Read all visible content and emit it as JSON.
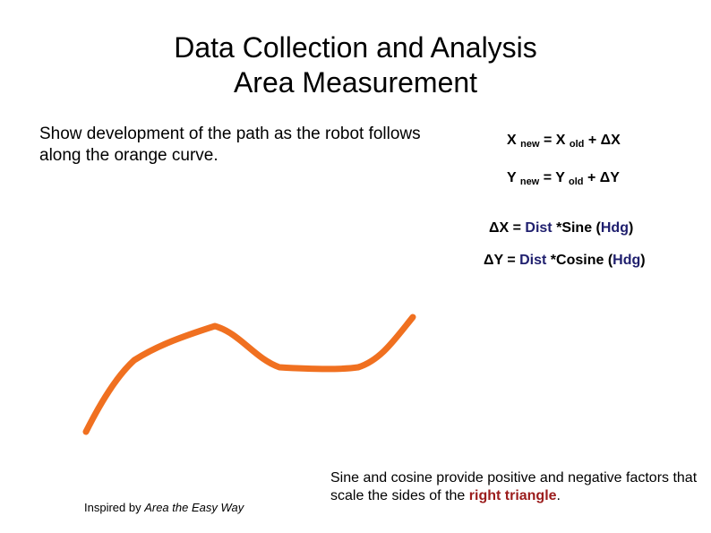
{
  "slide": {
    "title_line1": "Data Collection and Analysis",
    "title_line2": "Area Measurement",
    "intro": "Show development of the path as the robot follows along the orange curve."
  },
  "equations": {
    "x_update": {
      "lhs": "X",
      "lhs_sub": "new",
      "eq": " = X",
      "rhs_sub": "old",
      "plus": " +  ΔX"
    },
    "y_update": {
      "lhs": "Y",
      "lhs_sub": "new",
      "eq": " = Y",
      "rhs_sub": "old",
      "plus": " +  ΔY"
    },
    "dx": {
      "lhs": "ΔX = ",
      "dist": "Dist",
      "func": " *Sine (",
      "hdg": "Hdg",
      "close": ")"
    },
    "dy": {
      "lhs": "ΔY = ",
      "dist": "Dist",
      "func": " *Cosine (",
      "hdg": "Hdg",
      "close": ")"
    }
  },
  "credit": {
    "prefix": "Inspired by ",
    "work": "Area the Easy Way"
  },
  "note": {
    "text": "Sine and cosine provide positive and negative factors that scale the sides of the ",
    "emphasis": "right triangle",
    "end": "."
  },
  "colors": {
    "curve": "#f07020",
    "variable": "#1f1f6e",
    "emphasis": "#9b1c1c"
  }
}
